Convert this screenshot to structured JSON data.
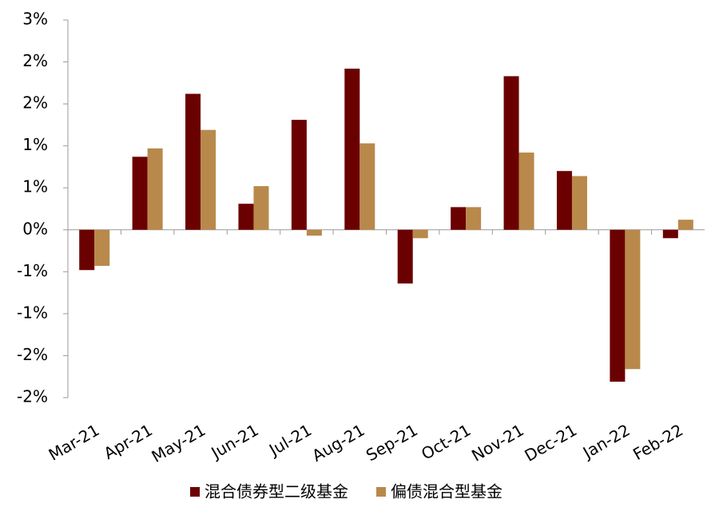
{
  "chart_data": {
    "type": "bar",
    "categories": [
      "Mar-21",
      "Apr-21",
      "May-21",
      "Jun-21",
      "Jul-21",
      "Aug-21",
      "Sep-21",
      "Oct-21",
      "Nov-21",
      "Dec-21",
      "Jan-22",
      "Feb-22"
    ],
    "series": [
      {
        "name": "混合债券型二级基金",
        "color": "#6b0000",
        "values": [
          -0.48,
          0.87,
          1.62,
          0.31,
          1.31,
          1.92,
          -0.64,
          0.27,
          1.83,
          0.7,
          -1.81,
          -0.1
        ]
      },
      {
        "name": "偏债混合型基金",
        "color": "#b8894a",
        "values": [
          -0.43,
          0.97,
          1.19,
          0.52,
          -0.07,
          1.03,
          -0.1,
          0.27,
          0.92,
          0.64,
          -1.66,
          0.12
        ]
      }
    ],
    "ylim": [
      -2.0,
      2.5
    ],
    "yticks": [
      {
        "value": -2.0,
        "label": "-2%"
      },
      {
        "value": -1.5,
        "label": "-2%"
      },
      {
        "value": -1.0,
        "label": "-1%"
      },
      {
        "value": -0.5,
        "label": "-1%"
      },
      {
        "value": 0,
        "label": "0%"
      },
      {
        "value": 0.5,
        "label": "1%"
      },
      {
        "value": 1.0,
        "label": "1%"
      },
      {
        "value": 1.5,
        "label": "2%"
      },
      {
        "value": 2.0,
        "label": "2%"
      },
      {
        "value": 2.5,
        "label": "3%"
      }
    ],
    "grid": false,
    "legend": "bottom"
  }
}
